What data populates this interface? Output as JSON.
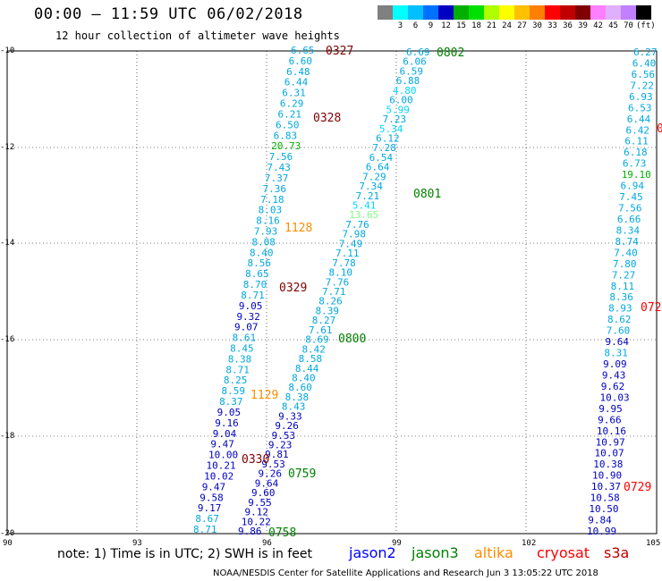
{
  "title": "00:00 – 11:59 UTC 06/02/2018",
  "subtitle": "12 hour collection of altimeter wave heights",
  "colorbar": {
    "unit_label": "(ft)",
    "ticks": [
      "3",
      "6",
      "9",
      "12",
      "15",
      "18",
      "21",
      "24",
      "27",
      "30",
      "33",
      "36",
      "39",
      "42",
      "45",
      "70"
    ],
    "colors": [
      "#808080",
      "#00ffff",
      "#00c0ff",
      "#0070ff",
      "#0000c0",
      "#00b000",
      "#00e000",
      "#b0ff00",
      "#ffff00",
      "#ffc000",
      "#ff8000",
      "#ff0000",
      "#c00000",
      "#800000",
      "#ff80ff",
      "#e0b0ff",
      "#c080ff",
      "#000000"
    ]
  },
  "axes": {
    "lat_labels": [
      "-10",
      "-12",
      "-14",
      "-16",
      "-18",
      "-20"
    ],
    "lon_labels": [
      "90",
      "93",
      "96",
      "99",
      "102",
      "105"
    ]
  },
  "legend": {
    "note": "note: 1) Time is in UTC; 2) SWH is in feet",
    "satellites": [
      {
        "name": "jason2",
        "color": "#0000ff"
      },
      {
        "name": "jason3",
        "color": "#008000"
      },
      {
        "name": "altika",
        "color": "#ff8c00"
      },
      {
        "name": "cryosat",
        "color": "#ff0000"
      },
      {
        "name": "s3a",
        "color": "#c00000"
      }
    ]
  },
  "credit": "NOAA/NESDIS Center for Satellite Applications and Research   Jun  3 13:05:22 UTC 2018",
  "time_labels": [
    {
      "text": "0327",
      "color": "#800000"
    },
    {
      "text": "0802",
      "color": "#008000"
    },
    {
      "text": "0328",
      "color": "#800000"
    },
    {
      "text": "0801",
      "color": "#008000"
    },
    {
      "text": "1128",
      "color": "#ff8c00"
    },
    {
      "text": "0329",
      "color": "#800000"
    },
    {
      "text": "0800",
      "color": "#008000"
    },
    {
      "text": "1129",
      "color": "#ff8c00"
    },
    {
      "text": "0330",
      "color": "#800000"
    },
    {
      "text": "0759",
      "color": "#008000"
    },
    {
      "text": "0758",
      "color": "#008000"
    },
    {
      "text": "0729",
      "color": "#ff0000"
    },
    {
      "text": "072",
      "color": "#ff0000"
    },
    {
      "text": "0",
      "color": "#ff0000"
    }
  ],
  "tracks": {
    "track_a": [
      "6.65",
      "6.60",
      "6.48",
      "6.44",
      "6.31",
      "6.29",
      "6.21",
      "6.50",
      "6.83",
      "20.73",
      "7.56",
      "7.43",
      "7.37",
      "7.36",
      "7.18",
      "8.03",
      "8.16",
      "7.93",
      "8.08",
      "8.40",
      "8.56",
      "8.65",
      "8.70",
      "8.71",
      "9.05",
      "9.32",
      "9.07",
      "8.61",
      "8.45",
      "8.38",
      "8.71",
      "8.25",
      "8.59",
      "8.37",
      "9.05",
      "9.16",
      "9.04",
      "9.47",
      "10.00",
      "10.21",
      "10.02",
      "9.47",
      "9.58",
      "9.17",
      "8.67",
      "8.71"
    ],
    "track_b": [
      "6.69",
      "6.06",
      "6.59",
      "6.88",
      "4.80",
      "6.00",
      "5.99",
      "7.23",
      "5.34",
      "6.12",
      "7.28",
      "6.54",
      "6.64",
      "7.29",
      "7.34",
      "7.21",
      "5.41",
      "13.65",
      "7.76",
      "7.98",
      "7.49",
      "7.11",
      "7.78",
      "8.10",
      "7.76",
      "7.71",
      "8.26",
      "8.39",
      "8.27",
      "7.61",
      "8.69",
      "8.42",
      "8.58",
      "8.44",
      "8.40",
      "8.60",
      "8.38",
      "8.43",
      "9.33",
      "9.26",
      "9.53",
      "9.23",
      "9.81",
      "9.53",
      "9.26",
      "9.64",
      "9.60",
      "9.55",
      "9.12",
      "10.22",
      "9.86"
    ],
    "track_c": [
      "6.27",
      "6.40",
      "6.56",
      "7.22",
      "6.93",
      "6.53",
      "6.44",
      "6.42",
      "6.11",
      "6.18",
      "6.73",
      "19.10",
      "6.94",
      "7.45",
      "7.56",
      "6.66",
      "8.34",
      "8.74",
      "7.40",
      "7.80",
      "7.27",
      "8.11",
      "8.36",
      "8.93",
      "8.62",
      "7.60",
      "9.64",
      "8.31",
      "9.09",
      "9.43",
      "9.62",
      "10.03",
      "9.95",
      "9.66",
      "10.16",
      "10.97",
      "10.07",
      "10.38",
      "10.90",
      "10.37",
      "10.58",
      "10.50",
      "9.84",
      "10.99"
    ]
  }
}
